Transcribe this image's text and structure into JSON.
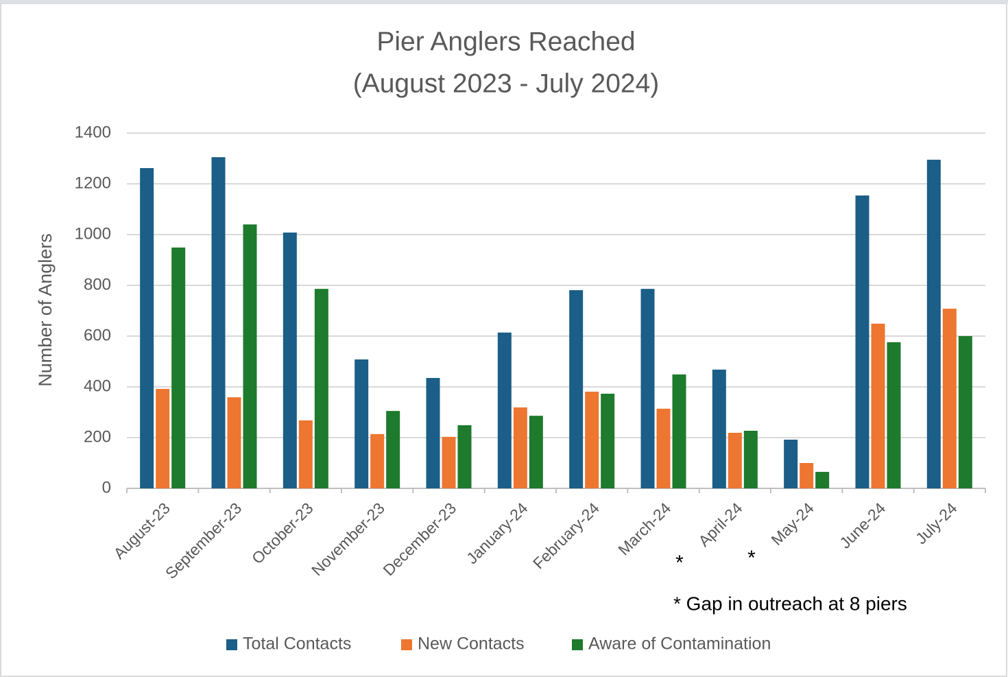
{
  "chart_data": {
    "type": "bar",
    "title": "Pier Anglers Reached",
    "subtitle": "(August 2023 - July 2024)",
    "y_label": "Number of Anglers",
    "categories": [
      "August-23",
      "September-23",
      "October-23",
      "November-23",
      "December-23",
      "January-24",
      "February-24",
      "March-24",
      "April-24",
      "May-24",
      "June-24",
      "July-24"
    ],
    "series": [
      {
        "name": "Total Contacts",
        "color": "#1b5e87",
        "values": [
          1262,
          1305,
          1008,
          508,
          435,
          614,
          781,
          786,
          468,
          192,
          1154,
          1295
        ]
      },
      {
        "name": "New Contacts",
        "color": "#ed7631",
        "values": [
          392,
          359,
          268,
          214,
          203,
          319,
          381,
          314,
          219,
          100,
          649,
          708
        ]
      },
      {
        "name": "Aware of Contamination",
        "color": "#1e7a2c",
        "values": [
          949,
          1040,
          786,
          305,
          249,
          286,
          373,
          449,
          227,
          65,
          576,
          600
        ]
      }
    ],
    "ylim": [
      0,
      1400
    ],
    "yticks": [
      0,
      200,
      400,
      600,
      800,
      1000,
      1200,
      1400
    ],
    "grid": true,
    "legend": "bottom",
    "annotations": [
      "*",
      "*",
      "* Gap in outreach at 8 piers"
    ]
  }
}
